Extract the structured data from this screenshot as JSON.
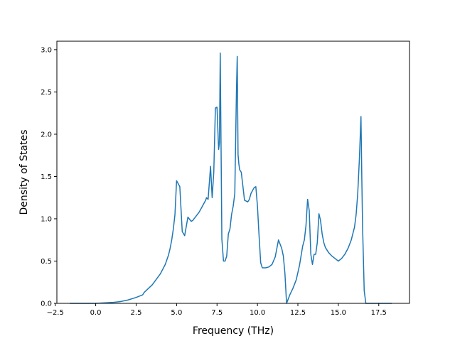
{
  "chart_data": {
    "type": "line",
    "xlabel": "Frequency (THz)",
    "ylabel": "Density of States",
    "xlim": [
      -2.4,
      19.4
    ],
    "ylim": [
      0.0,
      3.1
    ],
    "xticks": [
      -2.5,
      0.0,
      2.5,
      5.0,
      7.5,
      10.0,
      12.5,
      15.0,
      17.5
    ],
    "xtick_labels": [
      "−2.5",
      "0.0",
      "2.5",
      "5.0",
      "7.5",
      "10.0",
      "12.5",
      "15.0",
      "17.5"
    ],
    "yticks": [
      0.0,
      0.5,
      1.0,
      1.5,
      2.0,
      2.5,
      3.0
    ],
    "ytick_labels": [
      "0.0",
      "0.5",
      "1.0",
      "1.5",
      "2.0",
      "2.5",
      "3.0"
    ],
    "grid": false,
    "series": [
      {
        "color": "#1f77b4",
        "x": [
          -1.6,
          -1.0,
          0.0,
          0.5,
          1.0,
          1.5,
          2.0,
          2.5,
          2.9,
          3.0,
          3.5,
          4.0,
          4.3,
          4.5,
          4.6,
          4.7,
          4.8,
          4.9,
          5.0,
          5.2,
          5.35,
          5.5,
          5.7,
          5.9,
          6.0,
          6.2,
          6.4,
          6.6,
          6.8,
          6.85,
          6.95,
          7.1,
          7.2,
          7.3,
          7.4,
          7.5,
          7.6,
          7.65,
          7.7,
          7.8,
          7.9,
          8.0,
          8.1,
          8.2,
          8.3,
          8.4,
          8.5,
          8.6,
          8.7,
          8.75,
          8.8,
          8.85,
          8.9,
          9.0,
          9.2,
          9.4,
          9.5,
          9.6,
          9.8,
          9.9,
          10.0,
          10.1,
          10.2,
          10.3,
          10.5,
          10.7,
          10.9,
          11.1,
          11.3,
          11.5,
          11.6,
          11.7,
          11.8,
          11.9,
          12.0,
          12.2,
          12.4,
          12.6,
          12.8,
          12.9,
          13.0,
          13.1,
          13.2,
          13.3,
          13.4,
          13.5,
          13.6,
          13.7,
          13.8,
          13.9,
          14.0,
          14.1,
          14.2,
          14.4,
          14.6,
          14.8,
          15.0,
          15.2,
          15.4,
          15.6,
          15.8,
          16.0,
          16.1,
          16.2,
          16.3,
          16.4,
          16.45,
          16.5,
          16.6,
          16.7,
          16.8,
          17.0,
          17.5,
          18.3
        ],
        "y": [
          0.0,
          0.0,
          0.0,
          0.005,
          0.01,
          0.02,
          0.04,
          0.07,
          0.1,
          0.13,
          0.22,
          0.35,
          0.46,
          0.57,
          0.65,
          0.75,
          0.88,
          1.05,
          1.45,
          1.38,
          0.85,
          0.8,
          1.02,
          0.97,
          0.98,
          1.03,
          1.08,
          1.15,
          1.22,
          1.25,
          1.23,
          1.62,
          1.25,
          1.55,
          2.31,
          2.32,
          1.82,
          1.9,
          2.96,
          0.76,
          0.5,
          0.5,
          0.56,
          0.82,
          0.88,
          1.05,
          1.15,
          1.3,
          2.5,
          2.92,
          1.76,
          1.65,
          1.58,
          1.55,
          1.22,
          1.2,
          1.23,
          1.3,
          1.37,
          1.38,
          1.15,
          0.8,
          0.48,
          0.42,
          0.42,
          0.43,
          0.46,
          0.55,
          0.75,
          0.65,
          0.56,
          0.35,
          0.0,
          0.05,
          0.1,
          0.18,
          0.28,
          0.45,
          0.68,
          0.75,
          0.92,
          1.23,
          1.1,
          0.58,
          0.46,
          0.58,
          0.58,
          0.72,
          1.06,
          0.98,
          0.82,
          0.72,
          0.66,
          0.6,
          0.56,
          0.53,
          0.5,
          0.53,
          0.58,
          0.65,
          0.75,
          0.9,
          1.05,
          1.3,
          1.7,
          2.21,
          1.5,
          0.9,
          0.15,
          0.0,
          0.0,
          0.0,
          0.0,
          0.0
        ]
      }
    ]
  }
}
